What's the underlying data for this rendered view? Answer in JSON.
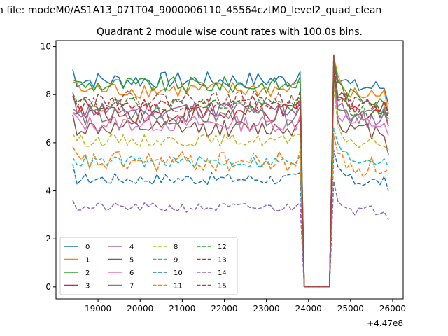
{
  "figure": {
    "suptitle": "n file: modeM0/AS1A13_071T04_9000006110_45564cztM0_level2_quad_clean"
  },
  "chart_data": {
    "type": "line",
    "title": "Quadrant 2 module wise count rates with 100.0s bins.",
    "xlabel": "",
    "ylabel": "",
    "offset_text": "+4.47e8",
    "xlim": [
      18000,
      26250
    ],
    "ylim": [
      -0.5,
      10.25
    ],
    "xticks": [
      19000,
      20000,
      21000,
      22000,
      23000,
      24000,
      25000,
      26000
    ],
    "yticks": [
      0,
      2,
      4,
      6,
      8,
      10
    ],
    "grid": false,
    "legend": {
      "position": "lower-left",
      "ncol": 4
    },
    "x": {
      "start": 18400,
      "step": 100,
      "count": 76
    },
    "gap": {
      "from": 23900,
      "to": 24500
    },
    "series": [
      {
        "name": "0",
        "color": "#1f77b4",
        "dash": "solid",
        "base_left": 8.6,
        "base_right": 8.3,
        "noise": 0.35,
        "peak": 9.4,
        "end": 7.6
      },
      {
        "name": "1",
        "color": "#ff7f0e",
        "dash": "solid",
        "base_left": 8.2,
        "base_right": 8.0,
        "noise": 0.35,
        "peak": 9.6,
        "end": 7.2
      },
      {
        "name": "2",
        "color": "#2ca02c",
        "dash": "solid",
        "base_left": 8.4,
        "base_right": 7.9,
        "noise": 0.35,
        "peak": 9.5,
        "end": 7.3
      },
      {
        "name": "3",
        "color": "#d62728",
        "dash": "solid",
        "base_left": 7.2,
        "base_right": 7.3,
        "noise": 0.4,
        "peak": 9.2,
        "end": 6.7
      },
      {
        "name": "4",
        "color": "#9467bd",
        "dash": "solid",
        "base_left": 7.4,
        "base_right": 7.0,
        "noise": 0.4,
        "peak": 8.8,
        "end": 6.8
      },
      {
        "name": "5",
        "color": "#8c564b",
        "dash": "solid",
        "base_left": 6.6,
        "base_right": 6.5,
        "noise": 0.35,
        "peak": 9.3,
        "end": 5.5
      },
      {
        "name": "6",
        "color": "#e377c2",
        "dash": "solid",
        "base_left": 6.8,
        "base_right": 6.8,
        "noise": 0.35,
        "peak": 8.5,
        "end": 6.3
      },
      {
        "name": "7",
        "color": "#7f7f7f",
        "dash": "solid",
        "base_left": 7.1,
        "base_right": 7.2,
        "noise": 0.4,
        "peak": 8.9,
        "end": 6.7
      },
      {
        "name": "8",
        "color": "#bcbd22",
        "dash": "dashed",
        "base_left": 6.1,
        "base_right": 6.0,
        "noise": 0.25,
        "peak": 8.3,
        "end": 5.7
      },
      {
        "name": "9",
        "color": "#17becf",
        "dash": "dashed",
        "base_left": 5.2,
        "base_right": 5.3,
        "noise": 0.25,
        "peak": 6.6,
        "end": 5.0
      },
      {
        "name": "10",
        "color": "#1f77b4",
        "dash": "dashed",
        "base_left": 4.5,
        "base_right": 4.4,
        "noise": 0.25,
        "peak": 5.7,
        "end": 4.0
      },
      {
        "name": "11",
        "color": "#ff7f0e",
        "dash": "dashed",
        "base_left": 5.2,
        "base_right": 5.0,
        "noise": 0.45,
        "peak": 6.3,
        "end": 4.9
      },
      {
        "name": "12",
        "color": "#2ca02c",
        "dash": "dashed",
        "base_left": 7.6,
        "base_right": 7.3,
        "noise": 0.3,
        "peak": 8.7,
        "end": 7.0
      },
      {
        "name": "13",
        "color": "#d62728",
        "dash": "dashed",
        "base_left": 7.6,
        "base_right": 7.5,
        "noise": 0.3,
        "peak": 8.9,
        "end": 7.2
      },
      {
        "name": "14",
        "color": "#9467bd",
        "dash": "dashed",
        "base_left": 3.3,
        "base_right": 3.2,
        "noise": 0.2,
        "peak": 4.4,
        "end": 2.8
      },
      {
        "name": "15",
        "color": "#8c564b",
        "dash": "dashed",
        "base_left": 7.8,
        "base_right": 7.6,
        "noise": 0.35,
        "peak": 9.7,
        "end": 7.0
      }
    ]
  }
}
